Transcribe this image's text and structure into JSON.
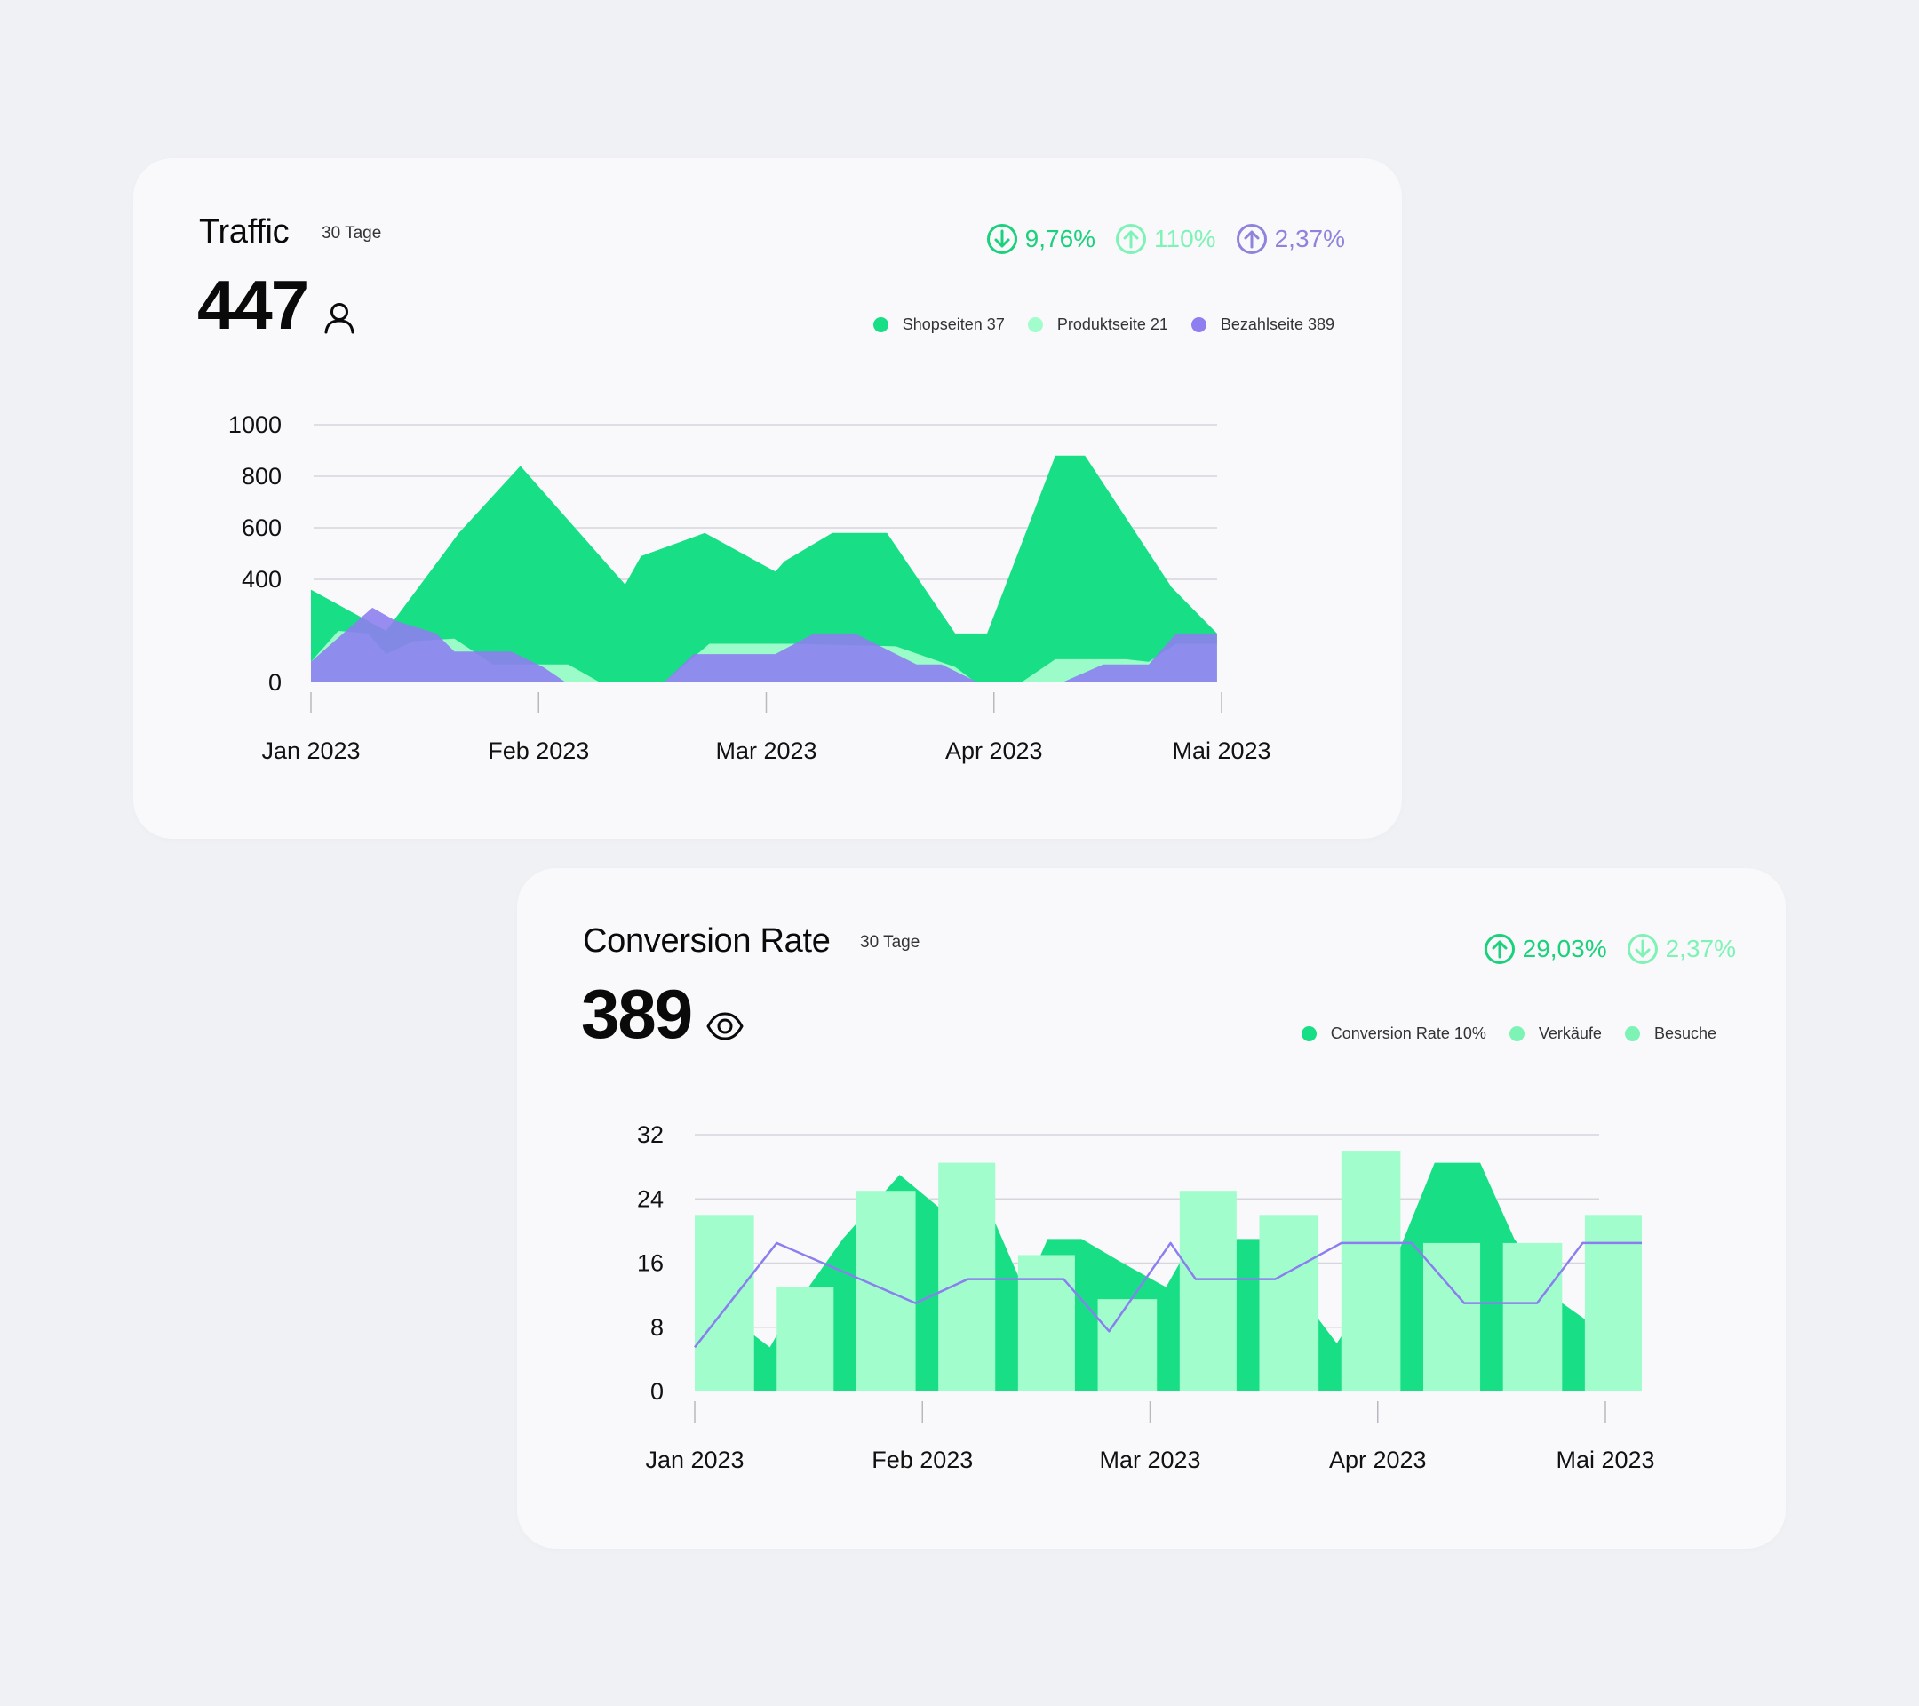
{
  "colors": {
    "green": "#18df86",
    "mint": "#a2fdcc",
    "purple": "#8d7fef",
    "line_purple": "#8b7ff0",
    "kpi_green": "#1ad17c",
    "kpi_mint": "#7ef3b6",
    "kpi_purple": "#8e84dc"
  },
  "traffic": {
    "title": "Traffic",
    "period": "30 Tage",
    "value": "447",
    "value_icon": "user-icon",
    "kpis": [
      {
        "direction": "down",
        "text": "9,76%",
        "color": "#1ad17c"
      },
      {
        "direction": "up",
        "text": "110%",
        "color": "#7ef3b6"
      },
      {
        "direction": "up",
        "text": "2,37%",
        "color": "#8e84dc"
      }
    ],
    "legend": [
      {
        "label": "Shopseiten 37",
        "color": "#18df86"
      },
      {
        "label": "Produktseite 21",
        "color": "#a2fdcc"
      },
      {
        "label": "Bezahlseite 389",
        "color": "#8d7fef"
      }
    ]
  },
  "conversion": {
    "title": "Conversion Rate",
    "period": "30 Tage",
    "value": "389",
    "value_icon": "eye-icon",
    "kpis": [
      {
        "direction": "up",
        "text": "29,03%",
        "color": "#1ad17c"
      },
      {
        "direction": "down",
        "text": "2,37%",
        "color": "#7ef3b6"
      }
    ],
    "legend": [
      {
        "label": "Conversion Rate 10%",
        "color": "#18df86"
      },
      {
        "label": "Verkäufe",
        "color": "#7ef3b6"
      },
      {
        "label": "Besuche",
        "color": "#7ef3b6"
      }
    ]
  },
  "chart_data": [
    {
      "type": "area",
      "x_labels": [
        "Jan 2023",
        "Feb 2023",
        "Mar 2023",
        "Apr 2023",
        "Mai 2023"
      ],
      "x_range": [
        0,
        4
      ],
      "yticks": [
        0,
        400,
        600,
        800,
        1000
      ],
      "ylim": [
        0,
        1000
      ],
      "grid": true,
      "series": [
        {
          "name": "Shopseiten 37",
          "color": "#18df86",
          "points": [
            [
              0,
              360
            ],
            [
              0.33,
              200
            ],
            [
              0.65,
              580
            ],
            [
              0.92,
              840
            ],
            [
              1.38,
              380
            ],
            [
              1.45,
              490
            ],
            [
              1.73,
              580
            ],
            [
              2.04,
              430
            ],
            [
              2.08,
              470
            ],
            [
              2.29,
              580
            ],
            [
              2.53,
              580
            ],
            [
              2.83,
              190
            ],
            [
              2.97,
              190
            ],
            [
              3.27,
              880
            ],
            [
              3.4,
              880
            ],
            [
              3.78,
              370
            ],
            [
              3.98,
              190
            ]
          ]
        },
        {
          "name": "Produktseite 21",
          "color": "#a2fdcc",
          "points": [
            [
              0,
              80
            ],
            [
              0.12,
              200
            ],
            [
              0.25,
              190
            ],
            [
              0.33,
              110
            ],
            [
              0.45,
              160
            ],
            [
              0.63,
              170
            ],
            [
              0.8,
              70
            ],
            [
              1.13,
              70
            ],
            [
              1.27,
              0
            ],
            [
              1.55,
              0
            ],
            [
              1.75,
              150
            ],
            [
              2.13,
              150
            ],
            [
              2.57,
              140
            ],
            [
              2.83,
              60
            ],
            [
              2.92,
              0
            ],
            [
              3.12,
              0
            ],
            [
              3.27,
              90
            ],
            [
              3.58,
              90
            ],
            [
              3.68,
              80
            ],
            [
              3.8,
              150
            ],
            [
              3.98,
              150
            ]
          ]
        },
        {
          "name": "Bezahlseite 389",
          "color": "#8d7fef",
          "points": [
            [
              0,
              80
            ],
            [
              0.27,
              290
            ],
            [
              0.37,
              240
            ],
            [
              0.55,
              190
            ],
            [
              0.63,
              120
            ],
            [
              0.88,
              120
            ],
            [
              1.02,
              60
            ],
            [
              1.12,
              0
            ],
            [
              1.55,
              0
            ],
            [
              1.68,
              110
            ],
            [
              2.04,
              110
            ],
            [
              2.21,
              190
            ],
            [
              2.39,
              190
            ],
            [
              2.66,
              70
            ],
            [
              2.77,
              70
            ],
            [
              2.93,
              0
            ],
            [
              3.3,
              0
            ],
            [
              3.48,
              70
            ],
            [
              3.68,
              70
            ],
            [
              3.8,
              190
            ],
            [
              3.98,
              190
            ]
          ]
        }
      ]
    },
    {
      "type": "bar",
      "x_labels": [
        "Jan 2023",
        "Feb 2023",
        "Mar 2023",
        "Apr 2023",
        "Mai 2023"
      ],
      "x_range": [
        0,
        4
      ],
      "yticks": [
        0,
        8,
        16,
        24,
        32
      ],
      "ylim": [
        0,
        32
      ],
      "grid": true,
      "bars": [
        {
          "start": 0,
          "end": 0.26,
          "value": 22
        },
        {
          "start": 0.36,
          "end": 0.61,
          "value": 13
        },
        {
          "start": 0.71,
          "end": 0.97,
          "value": 25
        },
        {
          "start": 1.07,
          "end": 1.32,
          "value": 28.5
        },
        {
          "start": 1.42,
          "end": 1.67,
          "value": 17
        },
        {
          "start": 1.77,
          "end": 2.03,
          "value": 11.5
        },
        {
          "start": 2.13,
          "end": 2.38,
          "value": 25
        },
        {
          "start": 2.48,
          "end": 2.74,
          "value": 22
        },
        {
          "start": 2.84,
          "end": 3.1,
          "value": 30
        },
        {
          "start": 3.2,
          "end": 3.45,
          "value": 18.5
        },
        {
          "start": 3.55,
          "end": 3.81,
          "value": 18.5
        },
        {
          "start": 3.91,
          "end": 4.16,
          "value": 22
        }
      ],
      "area": [
        [
          0.26,
          7
        ],
        [
          0.33,
          5.5
        ],
        [
          0.4,
          9
        ],
        [
          0.65,
          19
        ],
        [
          0.9,
          27
        ],
        [
          1.07,
          23
        ],
        [
          1.32,
          21
        ],
        [
          1.45,
          12.5
        ],
        [
          1.55,
          19
        ],
        [
          1.7,
          19
        ],
        [
          1.88,
          16
        ],
        [
          2.07,
          13
        ],
        [
          2.13,
          16
        ],
        [
          2.38,
          19
        ],
        [
          2.54,
          19
        ],
        [
          2.74,
          9
        ],
        [
          2.82,
          6
        ],
        [
          3.1,
          18
        ],
        [
          3.25,
          28.5
        ],
        [
          3.45,
          28.5
        ],
        [
          3.6,
          19
        ],
        [
          3.81,
          11
        ],
        [
          3.91,
          9
        ]
      ],
      "line": [
        [
          0,
          5.5
        ],
        [
          0.36,
          18.5
        ],
        [
          0.97,
          11
        ],
        [
          1.2,
          14
        ],
        [
          1.62,
          14
        ],
        [
          1.82,
          7.5
        ],
        [
          2.09,
          18.5
        ],
        [
          2.2,
          14
        ],
        [
          2.55,
          14
        ],
        [
          2.84,
          18.5
        ],
        [
          3.15,
          18.5
        ],
        [
          3.38,
          11
        ],
        [
          3.7,
          11
        ],
        [
          3.9,
          18.5
        ],
        [
          4.16,
          18.5
        ]
      ]
    }
  ]
}
